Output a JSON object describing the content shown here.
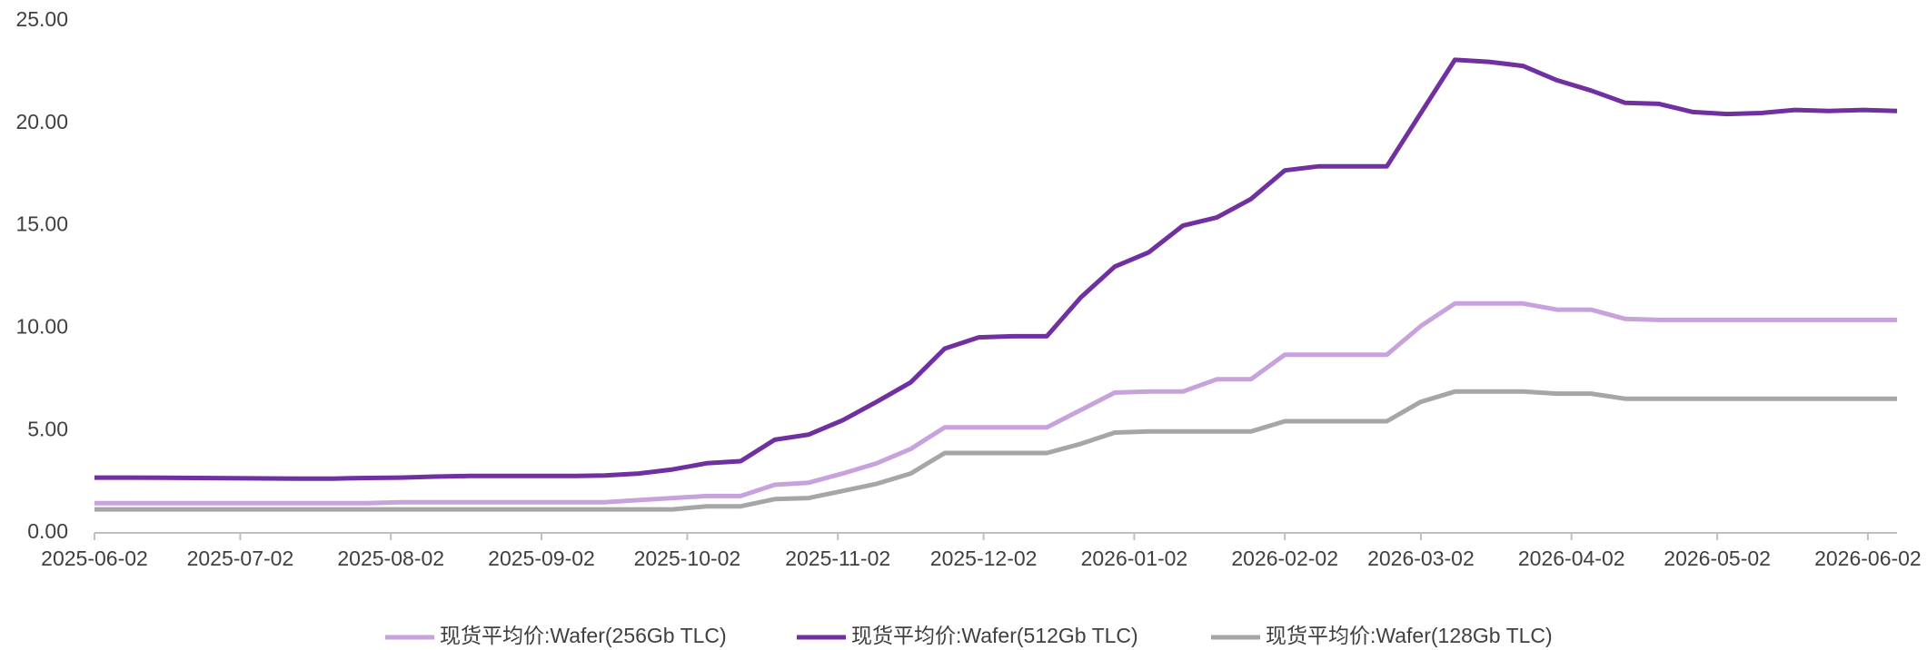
{
  "chart_data": {
    "type": "line",
    "x": [
      "2025-06-02",
      "2025-06-09",
      "2025-06-16",
      "2025-06-23",
      "2025-06-30",
      "2025-07-07",
      "2025-07-14",
      "2025-07-21",
      "2025-07-28",
      "2025-08-04",
      "2025-08-11",
      "2025-08-18",
      "2025-08-25",
      "2025-09-01",
      "2025-09-08",
      "2025-09-15",
      "2025-09-22",
      "2025-09-29",
      "2025-10-06",
      "2025-10-13",
      "2025-10-20",
      "2025-10-27",
      "2025-11-03",
      "2025-11-10",
      "2025-11-17",
      "2025-11-24",
      "2025-12-01",
      "2025-12-08",
      "2025-12-15",
      "2025-12-22",
      "2025-12-29",
      "2026-01-05",
      "2026-01-12",
      "2026-01-19",
      "2026-01-26",
      "2026-02-02",
      "2026-02-09",
      "2026-02-16",
      "2026-02-23",
      "2026-03-02",
      "2026-03-09",
      "2026-03-16",
      "2026-03-23",
      "2026-03-30",
      "2026-04-06",
      "2026-04-13",
      "2026-04-20",
      "2026-04-27",
      "2026-05-04",
      "2026-05-11",
      "2026-05-18",
      "2026-05-25",
      "2026-06-01",
      "2026-06-08"
    ],
    "series": [
      {
        "name": "现货平均价:Wafer(256Gb TLC)",
        "color": "#c8a2dc",
        "values": [
          1.45,
          1.45,
          1.45,
          1.45,
          1.45,
          1.45,
          1.45,
          1.45,
          1.45,
          1.5,
          1.5,
          1.5,
          1.5,
          1.5,
          1.5,
          1.5,
          1.6,
          1.7,
          1.8,
          1.8,
          2.35,
          2.45,
          2.9,
          3.4,
          4.1,
          5.15,
          5.15,
          5.15,
          5.15,
          6.0,
          6.85,
          6.9,
          6.9,
          7.5,
          7.5,
          8.7,
          8.7,
          8.7,
          8.7,
          10.1,
          11.2,
          11.2,
          11.2,
          10.9,
          10.9,
          10.45,
          10.4,
          10.4,
          10.4,
          10.4,
          10.4,
          10.4,
          10.4,
          10.4
        ]
      },
      {
        "name": "现货平均价:Wafer(512Gb TLC)",
        "color": "#7030a0",
        "values": [
          2.7,
          2.7,
          2.69,
          2.68,
          2.67,
          2.66,
          2.65,
          2.65,
          2.68,
          2.7,
          2.75,
          2.78,
          2.78,
          2.78,
          2.78,
          2.8,
          2.9,
          3.1,
          3.4,
          3.5,
          4.55,
          4.8,
          5.5,
          6.4,
          7.35,
          9.0,
          9.55,
          9.6,
          9.6,
          11.5,
          13.0,
          13.7,
          15.0,
          15.4,
          16.3,
          17.7,
          17.9,
          17.9,
          17.9,
          20.5,
          23.1,
          23.0,
          22.8,
          22.1,
          21.6,
          21.0,
          20.95,
          20.55,
          20.45,
          20.5,
          20.65,
          20.6,
          20.65,
          20.6
        ]
      },
      {
        "name": "现货平均价:Wafer(128Gb TLC)",
        "color": "#a6a6a6",
        "values": [
          1.15,
          1.15,
          1.15,
          1.15,
          1.15,
          1.15,
          1.15,
          1.15,
          1.15,
          1.15,
          1.15,
          1.15,
          1.15,
          1.15,
          1.15,
          1.15,
          1.15,
          1.15,
          1.3,
          1.3,
          1.65,
          1.7,
          2.05,
          2.4,
          2.9,
          3.9,
          3.9,
          3.9,
          3.9,
          4.35,
          4.9,
          4.95,
          4.95,
          4.95,
          4.95,
          5.45,
          5.45,
          5.45,
          5.45,
          6.4,
          6.9,
          6.9,
          6.9,
          6.8,
          6.8,
          6.55,
          6.55,
          6.55,
          6.55,
          6.55,
          6.55,
          6.55,
          6.55,
          6.55
        ]
      }
    ],
    "xlim": [
      "2025-06-02",
      "2026-06-08"
    ],
    "xticks": [
      "2025-06-02",
      "2025-07-02",
      "2025-08-02",
      "2025-09-02",
      "2025-10-02",
      "2025-11-02",
      "2025-12-02",
      "2026-01-02",
      "2026-02-02",
      "2026-03-02",
      "2026-04-02",
      "2026-05-02",
      "2026-06-02"
    ],
    "ylim": [
      0,
      25
    ],
    "yticks": [
      {
        "value": 0,
        "label": "0.00"
      },
      {
        "value": 5,
        "label": "5.00"
      },
      {
        "value": 10,
        "label": "10.00"
      },
      {
        "value": 15,
        "label": "15.00"
      },
      {
        "value": 20,
        "label": "20.00"
      },
      {
        "value": 25,
        "label": "25.00"
      }
    ],
    "grid": false,
    "legend": "bottom"
  }
}
